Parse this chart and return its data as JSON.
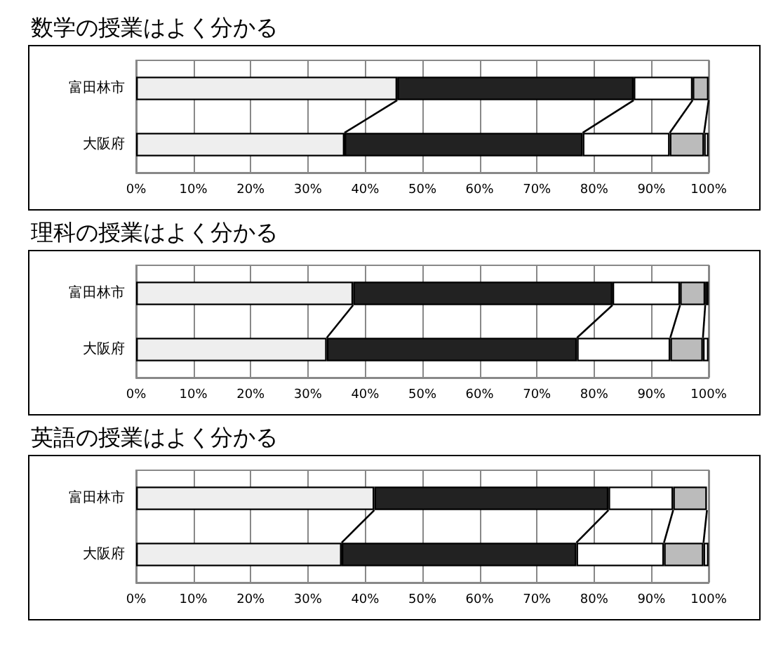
{
  "chart_data": [
    {
      "type": "bar",
      "orientation": "horizontal",
      "stacked": true,
      "title": "数学の授業はよく分かる",
      "categories": [
        "富田林市",
        "大阪府"
      ],
      "series": [
        {
          "color": "#eeeeee",
          "values": [
            45.6,
            36.4
          ]
        },
        {
          "color": "#222222",
          "values": [
            41.3,
            41.6
          ]
        },
        {
          "color": "#ffffff",
          "values": [
            10.3,
            15.2
          ]
        },
        {
          "color": "#bbbbbb",
          "values": [
            2.8,
            6.0
          ]
        },
        {
          "color": "#fafafa",
          "values": [
            null,
            0.8
          ]
        }
      ],
      "xlim": [
        0,
        100
      ],
      "xticks": [
        {
          "value": 0,
          "label": "0%"
        },
        {
          "value": 10,
          "label": "10%"
        },
        {
          "value": 20,
          "label": "20%"
        },
        {
          "value": 30,
          "label": "30%"
        },
        {
          "value": 40,
          "label": "40%"
        },
        {
          "value": 50,
          "label": "50%"
        },
        {
          "value": 60,
          "label": "60%"
        },
        {
          "value": 70,
          "label": "70%"
        },
        {
          "value": 80,
          "label": "80%"
        },
        {
          "value": 90,
          "label": "90%"
        },
        {
          "value": 100,
          "label": "100%"
        }
      ],
      "grid": "x"
    },
    {
      "type": "bar",
      "orientation": "horizontal",
      "stacked": true,
      "title": "理科の授業はよく分かる",
      "categories": [
        "富田林市",
        "大阪府"
      ],
      "series": [
        {
          "color": "#eeeeee",
          "values": [
            37.9,
            33.3
          ]
        },
        {
          "color": "#222222",
          "values": [
            45.3,
            43.7
          ]
        },
        {
          "color": "#ffffff",
          "values": [
            11.8,
            16.3
          ]
        },
        {
          "color": "#bbbbbb",
          "values": [
            4.4,
            5.7
          ]
        },
        {
          "color": "#fafafa",
          "values": [
            0.6,
            1.0
          ]
        }
      ],
      "xlim": [
        0,
        100
      ],
      "xticks": [
        {
          "value": 0,
          "label": "0%"
        },
        {
          "value": 10,
          "label": "10%"
        },
        {
          "value": 20,
          "label": "20%"
        },
        {
          "value": 30,
          "label": "30%"
        },
        {
          "value": 40,
          "label": "40%"
        },
        {
          "value": 50,
          "label": "50%"
        },
        {
          "value": 60,
          "label": "60%"
        },
        {
          "value": 70,
          "label": "70%"
        },
        {
          "value": 80,
          "label": "80%"
        },
        {
          "value": 90,
          "label": "90%"
        },
        {
          "value": 100,
          "label": "100%"
        }
      ],
      "grid": "x"
    },
    {
      "type": "bar",
      "orientation": "horizontal",
      "stacked": true,
      "title": "英語の授業はよく分かる",
      "categories": [
        "富田林市",
        "大阪府"
      ],
      "series": [
        {
          "color": "#eeeeee",
          "values": [
            41.6,
            35.9
          ]
        },
        {
          "color": "#222222",
          "values": [
            40.9,
            41.0
          ]
        },
        {
          "color": "#ffffff",
          "values": [
            11.3,
            15.3
          ]
        },
        {
          "color": "#bbbbbb",
          "values": [
            5.9,
            6.9
          ]
        },
        {
          "color": "#fafafa",
          "values": [
            null,
            0.9
          ]
        }
      ],
      "xlim": [
        0,
        100
      ],
      "xticks": [
        {
          "value": 0,
          "label": "0%"
        },
        {
          "value": 10,
          "label": "10%"
        },
        {
          "value": 20,
          "label": "20%"
        },
        {
          "value": 30,
          "label": "30%"
        },
        {
          "value": 40,
          "label": "40%"
        },
        {
          "value": 50,
          "label": "50%"
        },
        {
          "value": 60,
          "label": "60%"
        },
        {
          "value": 70,
          "label": "70%"
        },
        {
          "value": 80,
          "label": "80%"
        },
        {
          "value": 90,
          "label": "90%"
        },
        {
          "value": 100,
          "label": "100%"
        }
      ],
      "grid": "x"
    }
  ]
}
